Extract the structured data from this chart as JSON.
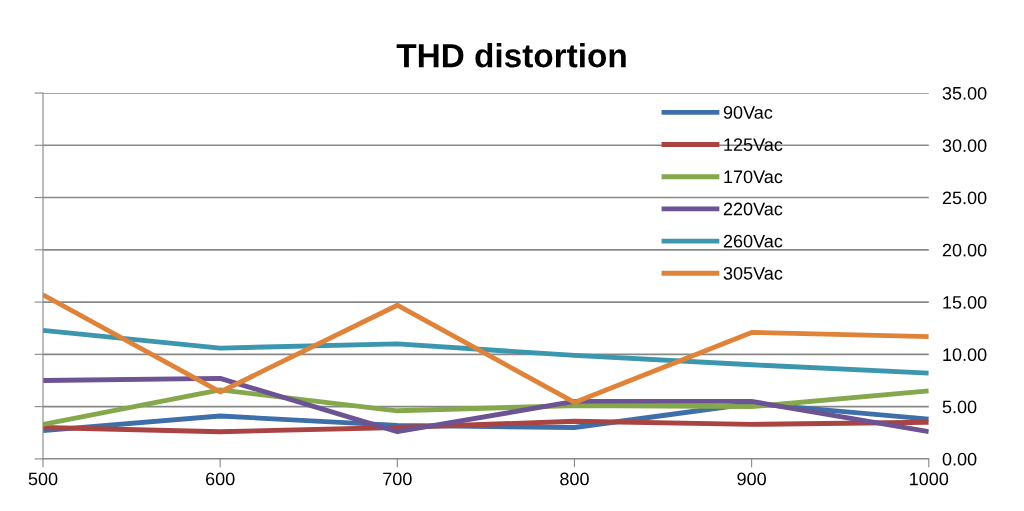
{
  "chart_data": {
    "type": "line",
    "title": "THD distortion",
    "x": [
      500,
      600,
      700,
      800,
      900,
      1000
    ],
    "series": [
      {
        "name": "90Vac",
        "color": "#3f6fa8",
        "values": [
          2.7,
          4.1,
          3.2,
          3.0,
          5.3,
          3.8
        ]
      },
      {
        "name": "125Vac",
        "color": "#a94442",
        "values": [
          3.0,
          2.6,
          3.0,
          3.6,
          3.3,
          3.5
        ]
      },
      {
        "name": "170Vac",
        "color": "#86a84c",
        "values": [
          3.3,
          6.6,
          4.6,
          5.1,
          5.0,
          6.5
        ]
      },
      {
        "name": "220Vac",
        "color": "#6c5393",
        "values": [
          7.5,
          7.7,
          2.6,
          5.5,
          5.5,
          2.6
        ]
      },
      {
        "name": "260Vac",
        "color": "#3c96ae",
        "values": [
          12.3,
          10.6,
          11.0,
          9.9,
          9.0,
          8.2
        ]
      },
      {
        "name": "305Vac",
        "color": "#e0833a",
        "values": [
          15.7,
          6.4,
          14.7,
          5.4,
          12.1,
          11.7
        ]
      }
    ],
    "xlim": [
      500,
      1000
    ],
    "xticks": [
      500,
      600,
      700,
      800,
      900,
      1000
    ],
    "ylim": [
      0,
      35
    ],
    "yticks": [
      {
        "value": 0,
        "label": "0.00"
      },
      {
        "value": 5,
        "label": "5.00"
      },
      {
        "value": 10,
        "label": "10.00"
      },
      {
        "value": 15,
        "label": "15.00"
      },
      {
        "value": 20,
        "label": "20.00"
      },
      {
        "value": 25,
        "label": "25.00"
      },
      {
        "value": 30,
        "label": "30.00"
      },
      {
        "value": 35,
        "label": "35.00"
      }
    ],
    "grid": "y",
    "legend": "top right",
    "marker": "none",
    "line_style": "solid"
  }
}
